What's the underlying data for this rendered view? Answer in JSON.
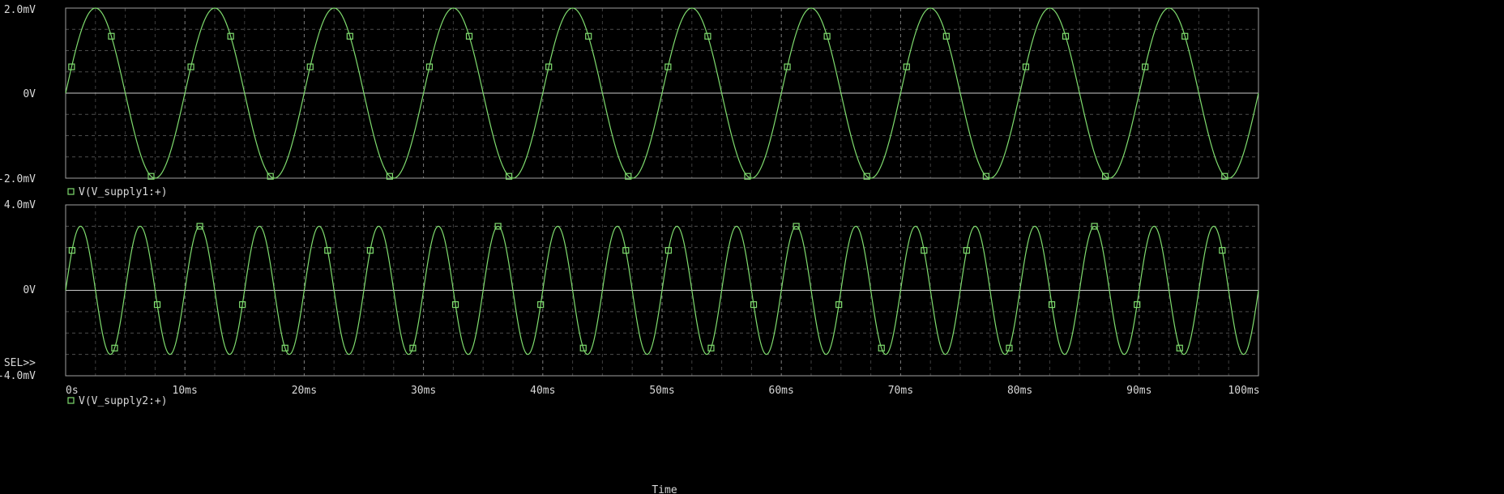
{
  "colors": {
    "background": "#000000",
    "trace": "#7fdc6e",
    "grid": "#8c8c8c",
    "text": "#d8d8d8"
  },
  "chart_data": [
    {
      "type": "line",
      "series": [
        {
          "name": "V(V_supply1:+)",
          "marker": "square"
        }
      ],
      "y_tick_labels": [
        "2.0mV",
        "0V",
        "-2.0mV"
      ],
      "ylim_mV": [
        -2.0,
        2.0
      ],
      "wave": {
        "amplitude_mV": 2.0,
        "frequency_Hz": 100,
        "phase_deg": 0
      },
      "x_ms": [
        0,
        5,
        10,
        15,
        20,
        25,
        30,
        35,
        40,
        45,
        50,
        55,
        60,
        65,
        70,
        75,
        80,
        85,
        90,
        95,
        100
      ],
      "y_mV": [
        0,
        0,
        0,
        0,
        0,
        0,
        0,
        0,
        0,
        0,
        0,
        0,
        0,
        0,
        0,
        0,
        0,
        0,
        0,
        0,
        0
      ],
      "x_peaks_ms": [
        2.5,
        12.5,
        22.5,
        32.5,
        42.5,
        52.5,
        62.5,
        72.5,
        82.5,
        92.5
      ],
      "grid": true
    },
    {
      "type": "line",
      "series": [
        {
          "name": "V(V_supply2:+)",
          "marker": "square"
        }
      ],
      "y_tick_labels": [
        "4.0mV",
        "0V",
        "-4.0mV"
      ],
      "ylim_mV": [
        -4.0,
        4.0
      ],
      "wave": {
        "amplitude_mV": 3.0,
        "frequency_Hz": 200,
        "phase_deg": 0
      },
      "x_peaks_ms": [
        1.25,
        6.25,
        11.25,
        16.25,
        21.25,
        26.25,
        31.25,
        36.25,
        41.25,
        46.25,
        51.25,
        56.25,
        61.25,
        66.25,
        71.25,
        76.25,
        81.25,
        86.25,
        91.25,
        96.25
      ],
      "y_peak_mV": 3.0,
      "grid": true
    }
  ],
  "x_axis": {
    "ticks_ms": [
      0,
      10,
      20,
      30,
      40,
      50,
      60,
      70,
      80,
      90,
      100
    ],
    "tick_labels": [
      "0s",
      "10ms",
      "20ms",
      "30ms",
      "40ms",
      "50ms",
      "60ms",
      "70ms",
      "80ms",
      "90ms",
      "100ms"
    ],
    "xlim_ms": [
      0,
      100
    ],
    "label": "Time"
  },
  "selection_label": "SEL>>",
  "legend": {
    "plot1": "V(V_supply1:+)",
    "plot2": "V(V_supply2:+)"
  }
}
